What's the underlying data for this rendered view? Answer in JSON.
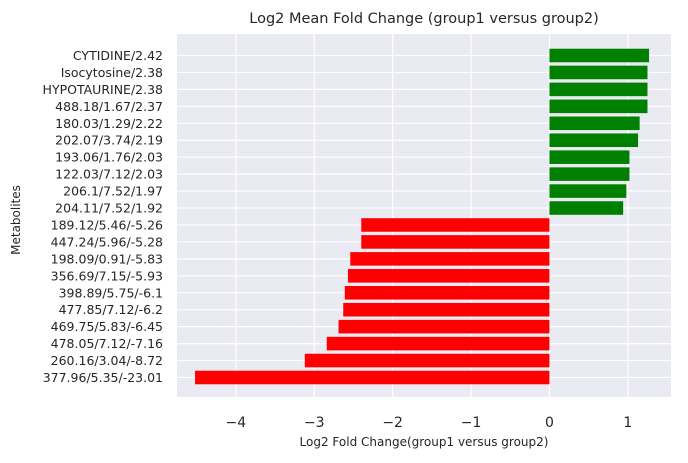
{
  "chart_data": {
    "type": "bar",
    "orientation": "horizontal",
    "title": "Log2 Mean Fold Change (group1 versus group2)",
    "xlabel": "Log2 Fold Change(group1 versus group2)",
    "ylabel": "Metabolites",
    "xlim": [
      -4.75,
      1.55
    ],
    "xticks": [
      -4,
      -3,
      -2,
      -1,
      0,
      1
    ],
    "xtick_labels": [
      "−4",
      "−3",
      "−2",
      "−1",
      "0",
      "1"
    ],
    "grid": true,
    "categories": [
      "CYTIDINE/2.42",
      "Isocytosine/2.38",
      "HYPOTAURINE/2.38",
      "488.18/1.67/2.37",
      "180.03/1.29/2.22",
      "202.07/3.74/2.19",
      "193.06/1.76/2.03",
      "122.03/7.12/2.03",
      "206.1/7.52/1.97",
      "204.11/7.52/1.92",
      "189.12/5.46/-5.26",
      "447.24/5.96/-5.28",
      "198.09/0.91/-5.83",
      "356.69/7.15/-5.93",
      "398.89/5.75/-6.1",
      "477.85/7.12/-6.2",
      "469.75/5.83/-6.45",
      "478.05/7.12/-7.16",
      "260.16/3.04/-8.72",
      "377.96/5.35/-23.01"
    ],
    "values": [
      1.27,
      1.25,
      1.25,
      1.25,
      1.15,
      1.13,
      1.02,
      1.02,
      0.98,
      0.94,
      -2.4,
      -2.4,
      -2.54,
      -2.57,
      -2.61,
      -2.63,
      -2.69,
      -2.84,
      -3.12,
      -4.52
    ],
    "colors": {
      "positive": "#008000",
      "negative": "#ff0000",
      "background": "#eaeaf2",
      "grid": "#ffffff",
      "text": "#262626"
    }
  }
}
